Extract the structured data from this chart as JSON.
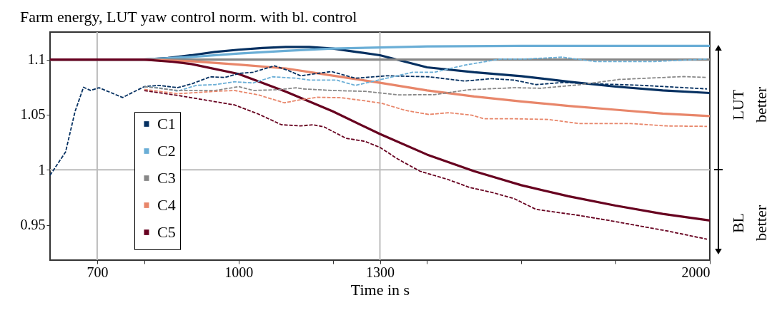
{
  "chart_data": {
    "type": "line",
    "title": "Farm energy, LUT yaw control norm. with bl. control",
    "xlabel": "Time in s",
    "xlim": [
      600,
      2000
    ],
    "ylim": [
      0.918,
      1.125
    ],
    "xticks": [
      700,
      {
        "value": 800,
        "label": null
      },
      1000,
      {
        "value": 1200,
        "label": null
      },
      1300,
      {
        "value": 1400,
        "label": null
      },
      {
        "value": 1600,
        "label": null
      },
      {
        "value": 1800,
        "label": null
      },
      2000
    ],
    "yticks": [
      0.95,
      1,
      1.05,
      1.1
    ],
    "grid": false,
    "legend": "bottom left",
    "line_style": "solid",
    "ref_lines": [
      {
        "axis": "x",
        "value": 700,
        "color": "#bdbdbd"
      },
      {
        "axis": "x",
        "value": 1300,
        "color": "#bdbdbd"
      },
      {
        "axis": "y",
        "value": 1,
        "color": "#bdbdbd"
      }
    ],
    "annotations": [
      "LUT better",
      "BL better"
    ],
    "series": [
      {
        "color": "#053061",
        "line_style": "dashed",
        "x": [
          600,
          633,
          653,
          671,
          686,
          704,
          754,
          800,
          830,
          871,
          901,
          940,
          971,
          1001,
          1031,
          1076,
          1102,
          1132,
          1197,
          1248,
          1314,
          1404,
          1480,
          1536,
          1585,
          1631,
          1687,
          1767,
          1858,
          1994
        ],
        "values": [
          0.995,
          1.0162,
          1.0528,
          1.0749,
          1.072,
          1.0745,
          1.0656,
          1.0755,
          1.0766,
          1.0746,
          1.078,
          1.0844,
          1.0838,
          1.0875,
          1.0885,
          1.0944,
          1.0907,
          1.0853,
          1.0892,
          1.0831,
          1.0853,
          1.0844,
          1.0805,
          1.0827,
          1.0814,
          1.0773,
          1.0792,
          1.0779,
          1.0766,
          1.0734
        ]
      },
      {
        "color": "#6aaed6",
        "line_style": "dashed",
        "x": [
          800,
          830,
          871,
          910,
          951,
          991,
          1031,
          1072,
          1122,
          1152,
          1208,
          1248,
          1303,
          1369,
          1415,
          1480,
          1555,
          1605,
          1687,
          1756,
          1883,
          1994
        ],
        "values": [
          1.0755,
          1.0745,
          1.0714,
          1.0766,
          1.0773,
          1.0799,
          1.0788,
          1.0844,
          1.0831,
          1.0814,
          1.0814,
          1.0766,
          1.082,
          1.0885,
          1.0885,
          1.095,
          1.1005,
          1.1005,
          1.1022,
          1.0983,
          1.0983,
          1.1005
        ]
      },
      {
        "color": "#878787",
        "line_style": "dashed",
        "x": [
          800,
          871,
          910,
          951,
          1001,
          1031,
          1087,
          1122,
          1137,
          1203,
          1268,
          1339,
          1415,
          1490,
          1585,
          1641,
          1722,
          1808,
          1944,
          1994
        ],
        "values": [
          1.0755,
          1.072,
          1.072,
          1.072,
          1.0755,
          1.072,
          1.0727,
          1.0745,
          1.0734,
          1.0719,
          1.0712,
          1.068,
          1.0682,
          1.0727,
          1.0745,
          1.074,
          1.0771,
          1.082,
          1.0846,
          1.0838
        ]
      },
      {
        "color": "#e8866a",
        "line_style": "dashed",
        "x": [
          800,
          871,
          910,
          951,
          991,
          1042,
          1097,
          1132,
          1167,
          1218,
          1268,
          1303,
          1354,
          1404,
          1445,
          1495,
          1521,
          1585,
          1657,
          1722,
          1832,
          1908,
          1994
        ],
        "values": [
          1.073,
          1.069,
          1.0701,
          1.0712,
          1.072,
          1.068,
          1.0608,
          1.0636,
          1.0658,
          1.0654,
          1.0626,
          1.0604,
          1.0539,
          1.0502,
          1.0518,
          1.0496,
          1.0463,
          1.0463,
          1.0457,
          1.042,
          1.042,
          1.0398,
          1.0394
        ]
      },
      {
        "color": "#67001f",
        "line_style": "dashed",
        "x": [
          800,
          871,
          931,
          991,
          1042,
          1091,
          1132,
          1158,
          1182,
          1228,
          1268,
          1300,
          1339,
          1385,
          1445,
          1490,
          1540,
          1585,
          1631,
          1722,
          1797,
          1908,
          1994
        ],
        "values": [
          1.0719,
          1.0675,
          1.0632,
          1.0589,
          1.0506,
          1.0409,
          1.0398,
          1.0409,
          1.0388,
          1.0286,
          1.0258,
          1.0203,
          1.0095,
          0.9987,
          0.9911,
          0.984,
          0.9792,
          0.9738,
          0.9641,
          0.9586,
          0.9532,
          0.9446,
          0.937
        ]
      },
      {
        "name": "C1",
        "color": "#053061",
        "x": [
          600,
          800,
          850,
          900,
          950,
          1000,
          1050,
          1100,
          1150,
          1200,
          1250,
          1300,
          1400,
          1500,
          1600,
          1700,
          1800,
          1900,
          2000
        ],
        "values": [
          1.1,
          1.1,
          1.1015,
          1.104,
          1.107,
          1.109,
          1.1105,
          1.1115,
          1.1115,
          1.11,
          1.107,
          1.104,
          1.093,
          1.0885,
          1.085,
          1.08,
          1.0755,
          1.072,
          1.0697
        ]
      },
      {
        "name": "C2",
        "color": "#6aaed6",
        "x": [
          600,
          800,
          900,
          1000,
          1100,
          1200,
          1300,
          1400,
          1600,
          2000
        ],
        "values": [
          1.1,
          1.1,
          1.1025,
          1.1055,
          1.108,
          1.11,
          1.111,
          1.112,
          1.1125,
          1.1125
        ]
      },
      {
        "name": "C3",
        "color": "#878787",
        "x": [
          600,
          2000
        ],
        "values": [
          1.1,
          1.1
        ]
      },
      {
        "name": "C4",
        "color": "#e8866a",
        "x": [
          600,
          800,
          900,
          1000,
          1100,
          1200,
          1300,
          1400,
          1500,
          1600,
          1700,
          1800,
          1900,
          2000
        ],
        "values": [
          1.1,
          1.1,
          1.0985,
          1.0955,
          1.092,
          1.0855,
          1.079,
          1.072,
          1.0665,
          1.062,
          1.058,
          1.0545,
          1.051,
          1.0487
        ]
      },
      {
        "name": "C5",
        "color": "#67001f",
        "x": [
          600,
          800,
          860,
          900,
          1000,
          1100,
          1200,
          1300,
          1400,
          1500,
          1600,
          1700,
          1800,
          1900,
          2000
        ],
        "values": [
          1.1,
          1.1,
          1.098,
          1.096,
          1.087,
          1.071,
          1.053,
          1.0325,
          1.0138,
          0.9987,
          0.986,
          0.976,
          0.9675,
          0.96,
          0.954
        ]
      }
    ]
  }
}
